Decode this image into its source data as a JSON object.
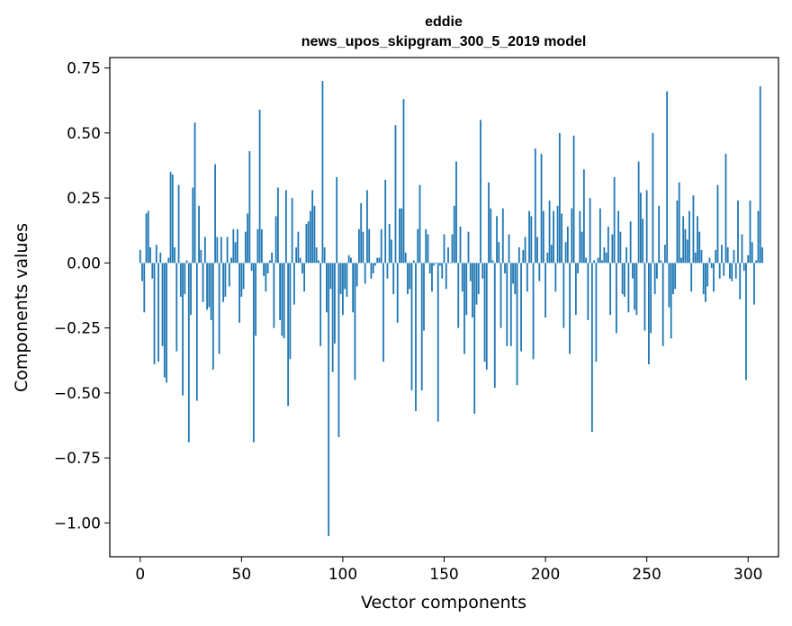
{
  "chart_data": {
    "type": "bar",
    "title": "eddie",
    "subtitle": "news_upos_skipgram_300_5_2019 model",
    "xlabel": "Vector components",
    "ylabel": "Components values",
    "xlim": [
      -15,
      315
    ],
    "ylim": [
      -1.13,
      0.79
    ],
    "xticks": [
      0,
      50,
      100,
      150,
      200,
      250,
      300
    ],
    "xtick_labels": [
      "0",
      "50",
      "100",
      "150",
      "200",
      "250",
      "300"
    ],
    "yticks": [
      0.75,
      0.5,
      0.25,
      0.0,
      -0.25,
      -0.5,
      -0.75,
      -1.0
    ],
    "ytick_labels": [
      "0.75",
      "0.50",
      "0.25",
      "0.00",
      "−0.25",
      "−0.50",
      "−0.75",
      "−1.00"
    ],
    "bar_color": "#1f77b4",
    "grid": false,
    "values": [
      0.05,
      -0.07,
      -0.19,
      0.19,
      0.2,
      0.06,
      -0.06,
      -0.39,
      0.07,
      -0.38,
      0.04,
      -0.32,
      -0.44,
      -0.46,
      0.02,
      0.35,
      0.34,
      0.06,
      -0.34,
      0.3,
      -0.13,
      -0.51,
      -0.12,
      0.01,
      -0.69,
      -0.2,
      0.29,
      0.54,
      -0.53,
      0.22,
      0.05,
      -0.15,
      0.1,
      -0.18,
      -0.17,
      -0.22,
      -0.41,
      0.38,
      0.1,
      -0.35,
      0.1,
      -0.15,
      -0.13,
      0.1,
      -0.09,
      0.02,
      0.13,
      0.08,
      0.13,
      -0.23,
      -0.13,
      -0.1,
      0.12,
      0.19,
      0.43,
      -0.03,
      -0.69,
      -0.28,
      0.13,
      0.59,
      0.13,
      -0.05,
      -0.11,
      -0.04,
      0.01,
      0.04,
      -0.25,
      0.18,
      0.29,
      -0.22,
      -0.28,
      -0.29,
      0.28,
      -0.55,
      -0.37,
      0.25,
      -0.16,
      0.06,
      0.12,
      0.02,
      -0.04,
      -0.11,
      0.15,
      0.16,
      0.2,
      0.28,
      0.22,
      0.06,
      0.01,
      -0.32,
      0.7,
      0.06,
      -0.19,
      -1.05,
      -0.1,
      -0.42,
      -0.31,
      0.33,
      -0.67,
      -0.12,
      -0.2,
      -0.1,
      -0.13,
      0.03,
      0.02,
      -0.19,
      -0.45,
      -0.09,
      0.13,
      0.23,
      0.12,
      -0.08,
      0.28,
      0.13,
      -0.06,
      -0.04,
      -0.01,
      0.02,
      0.02,
      0.13,
      -0.38,
      0.32,
      -0.06,
      0.15,
      0.09,
      -0.12,
      0.53,
      -0.23,
      0.21,
      0.21,
      0.63,
      0.04,
      -0.12,
      -0.1,
      -0.49,
      0.01,
      -0.57,
      0.13,
      0.3,
      -0.49,
      -0.26,
      0.13,
      0.11,
      -0.04,
      -0.11,
      -0.01,
      0.0,
      -0.61,
      -0.01,
      -0.06,
      0.11,
      -0.1,
      0.06,
      0.0,
      0.11,
      0.22,
      0.39,
      -0.25,
      0.14,
      -0.11,
      -0.35,
      -0.2,
      0.12,
      -0.07,
      -0.21,
      -0.58,
      -0.16,
      -0.12,
      0.55,
      -0.06,
      -0.38,
      -0.41,
      0.31,
      0.21,
      0.01,
      -0.48,
      0.18,
      0.08,
      -0.25,
      0.21,
      -0.04,
      -0.32,
      0.11,
      -0.32,
      -0.08,
      -0.12,
      -0.47,
      0.06,
      -0.34,
      0.05,
      0.1,
      -0.11,
      0.2,
      0.18,
      -0.37,
      0.44,
      0.1,
      -0.07,
      0.42,
      0.2,
      -0.21,
      0.04,
      0.24,
      0.07,
      0.2,
      -0.11,
      0.22,
      0.5,
      0.19,
      -0.25,
      0.08,
      0.14,
      -0.35,
      0.21,
      0.49,
      -0.2,
      -0.04,
      0.2,
      0.12,
      0.36,
      0.02,
      -0.22,
      0.25,
      -0.65,
      0.01,
      -0.38,
      0.02,
      0.21,
      0.01,
      0.06,
      0.04,
      0.14,
      -0.2,
      0.11,
      0.33,
      -0.27,
      0.2,
      0.12,
      -0.12,
      -0.13,
      0.06,
      -0.19,
      0.16,
      -0.06,
      -0.18,
      -0.2,
      0.39,
      0.27,
      0.17,
      -0.26,
      0.28,
      -0.39,
      -0.27,
      0.5,
      -0.12,
      -0.06,
      0.22,
      0.01,
      -0.32,
      0.07,
      0.66,
      -0.17,
      -0.29,
      -0.12,
      -0.1,
      0.24,
      0.31,
      0.02,
      0.18,
      0.13,
      0.09,
      0.2,
      -0.11,
      0.26,
      0.04,
      0.18,
      0.12,
      0.05,
      -0.12,
      -0.15,
      -0.09,
      0.02,
      -0.02,
      -0.11,
      0.05,
      0.3,
      -0.06,
      0.07,
      -0.05,
      0.42,
      0.06,
      -0.06,
      -0.07,
      0.05,
      -0.06,
      0.24,
      -0.14,
      0.11,
      -0.03,
      -0.45,
      0.03,
      0.24,
      0.08,
      -0.16,
      0.01,
      0.2,
      0.68,
      0.06
    ]
  }
}
